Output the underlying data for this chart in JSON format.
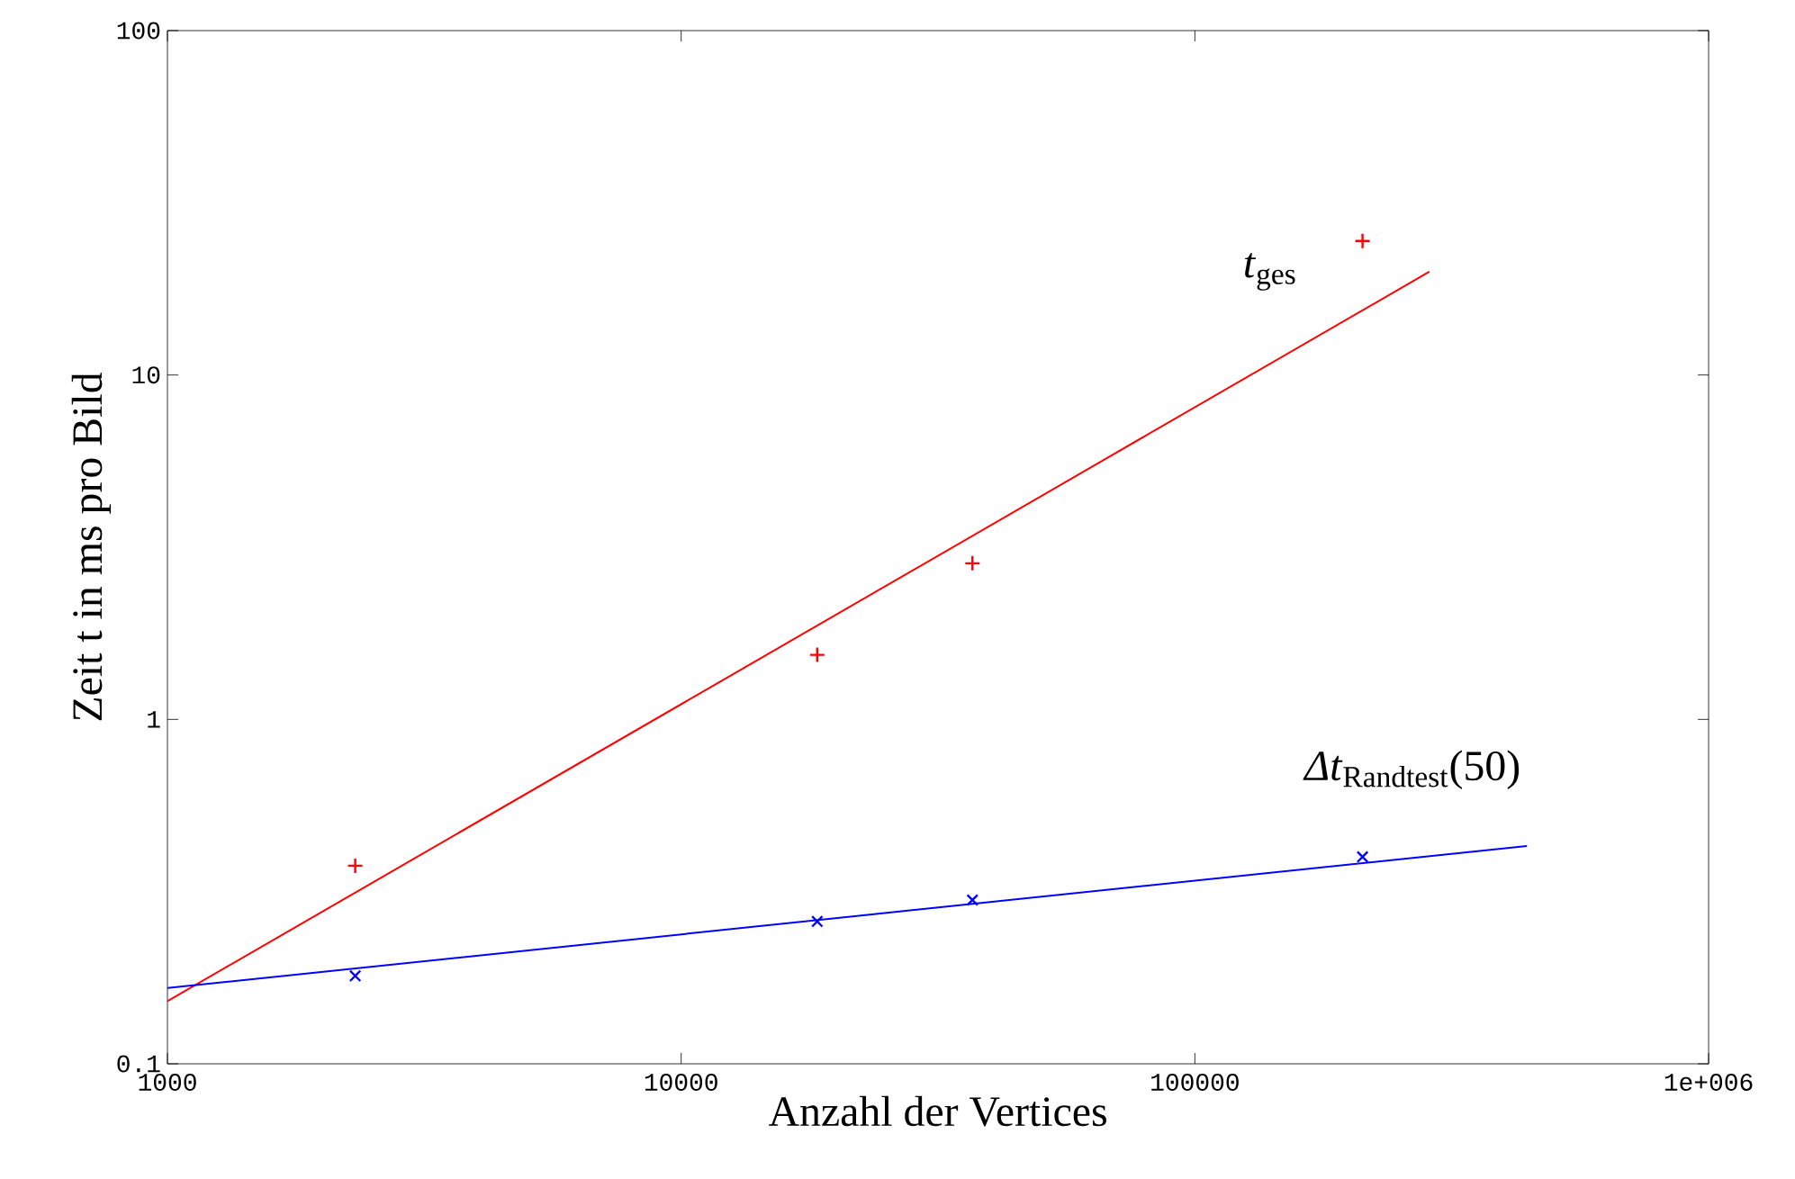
{
  "chart_data": {
    "type": "scatter",
    "xlabel": "Anzahl der Vertices",
    "ylabel": "Zeit t in ms pro Bild",
    "log": "xy",
    "xlim": [
      1000,
      1000000
    ],
    "ylim": [
      0.1,
      100
    ],
    "xticks": [
      1000,
      10000,
      100000,
      {
        "value": 1000000,
        "label": "1e+006"
      }
    ],
    "yticks": [
      0.1,
      1,
      10,
      100
    ],
    "series": [
      {
        "color": "#ff0000",
        "marker": "plus",
        "x": [
          2320,
          18400,
          36900,
          212000
        ],
        "values": [
          0.376,
          1.54,
          2.84,
          24.5
        ]
      },
      {
        "type": "line",
        "color": "#ff0000",
        "marker": "none",
        "x": [
          1000,
          286000
        ],
        "values": [
          0.152,
          19.95
        ]
      },
      {
        "color": "#0000ff",
        "marker": "cross",
        "x": [
          2320,
          18400,
          36900,
          212000
        ],
        "values": [
          0.18,
          0.259,
          0.299,
          0.399
        ]
      },
      {
        "type": "line",
        "color": "#0000ff",
        "marker": "none",
        "x": [
          1000,
          443000
        ],
        "values": [
          0.166,
          0.429
        ]
      }
    ],
    "annotations": [
      "*t*$_{ges}$",
      "*Δt*$_{Randtest}$(50)"
    ]
  }
}
